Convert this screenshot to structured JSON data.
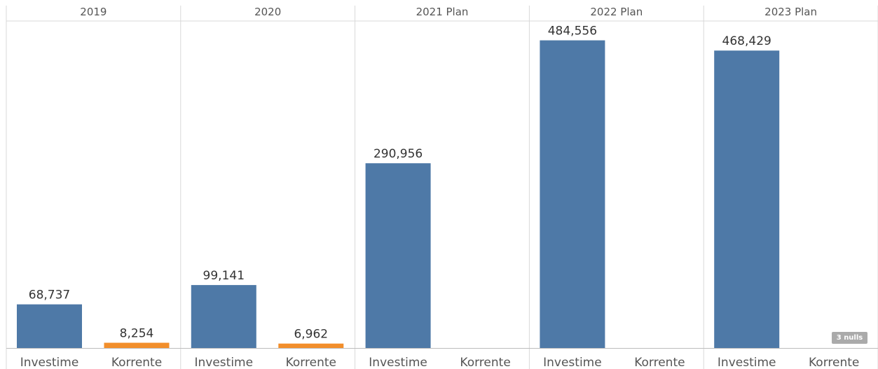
{
  "chart_data": {
    "type": "bar",
    "panels": [
      "2019",
      "2020",
      "2021 Plan",
      "2022 Plan",
      "2023 Plan"
    ],
    "categories": [
      "Investime",
      "Korrente"
    ],
    "series_colors": {
      "Investime": "#4e79a7",
      "Korrente": "#f28e2b"
    },
    "values": {
      "2019": {
        "Investime": 68737,
        "Korrente": 8254
      },
      "2020": {
        "Investime": 99141,
        "Korrente": 6962
      },
      "2021 Plan": {
        "Investime": 290956,
        "Korrente": null
      },
      "2022 Plan": {
        "Investime": 484556,
        "Korrente": null
      },
      "2023 Plan": {
        "Investime": 468429,
        "Korrente": null
      }
    },
    "value_labels": {
      "2019": {
        "Investime": "68,737",
        "Korrente": "8,254"
      },
      "2020": {
        "Investime": "99,141",
        "Korrente": "6,962"
      },
      "2021 Plan": {
        "Investime": "290,956",
        "Korrente": ""
      },
      "2022 Plan": {
        "Investime": "484,556",
        "Korrente": ""
      },
      "2023 Plan": {
        "Investime": "468,429",
        "Korrente": ""
      }
    },
    "ylim": [
      0,
      515000
    ],
    "nulls_indicator": "3 nulls"
  }
}
